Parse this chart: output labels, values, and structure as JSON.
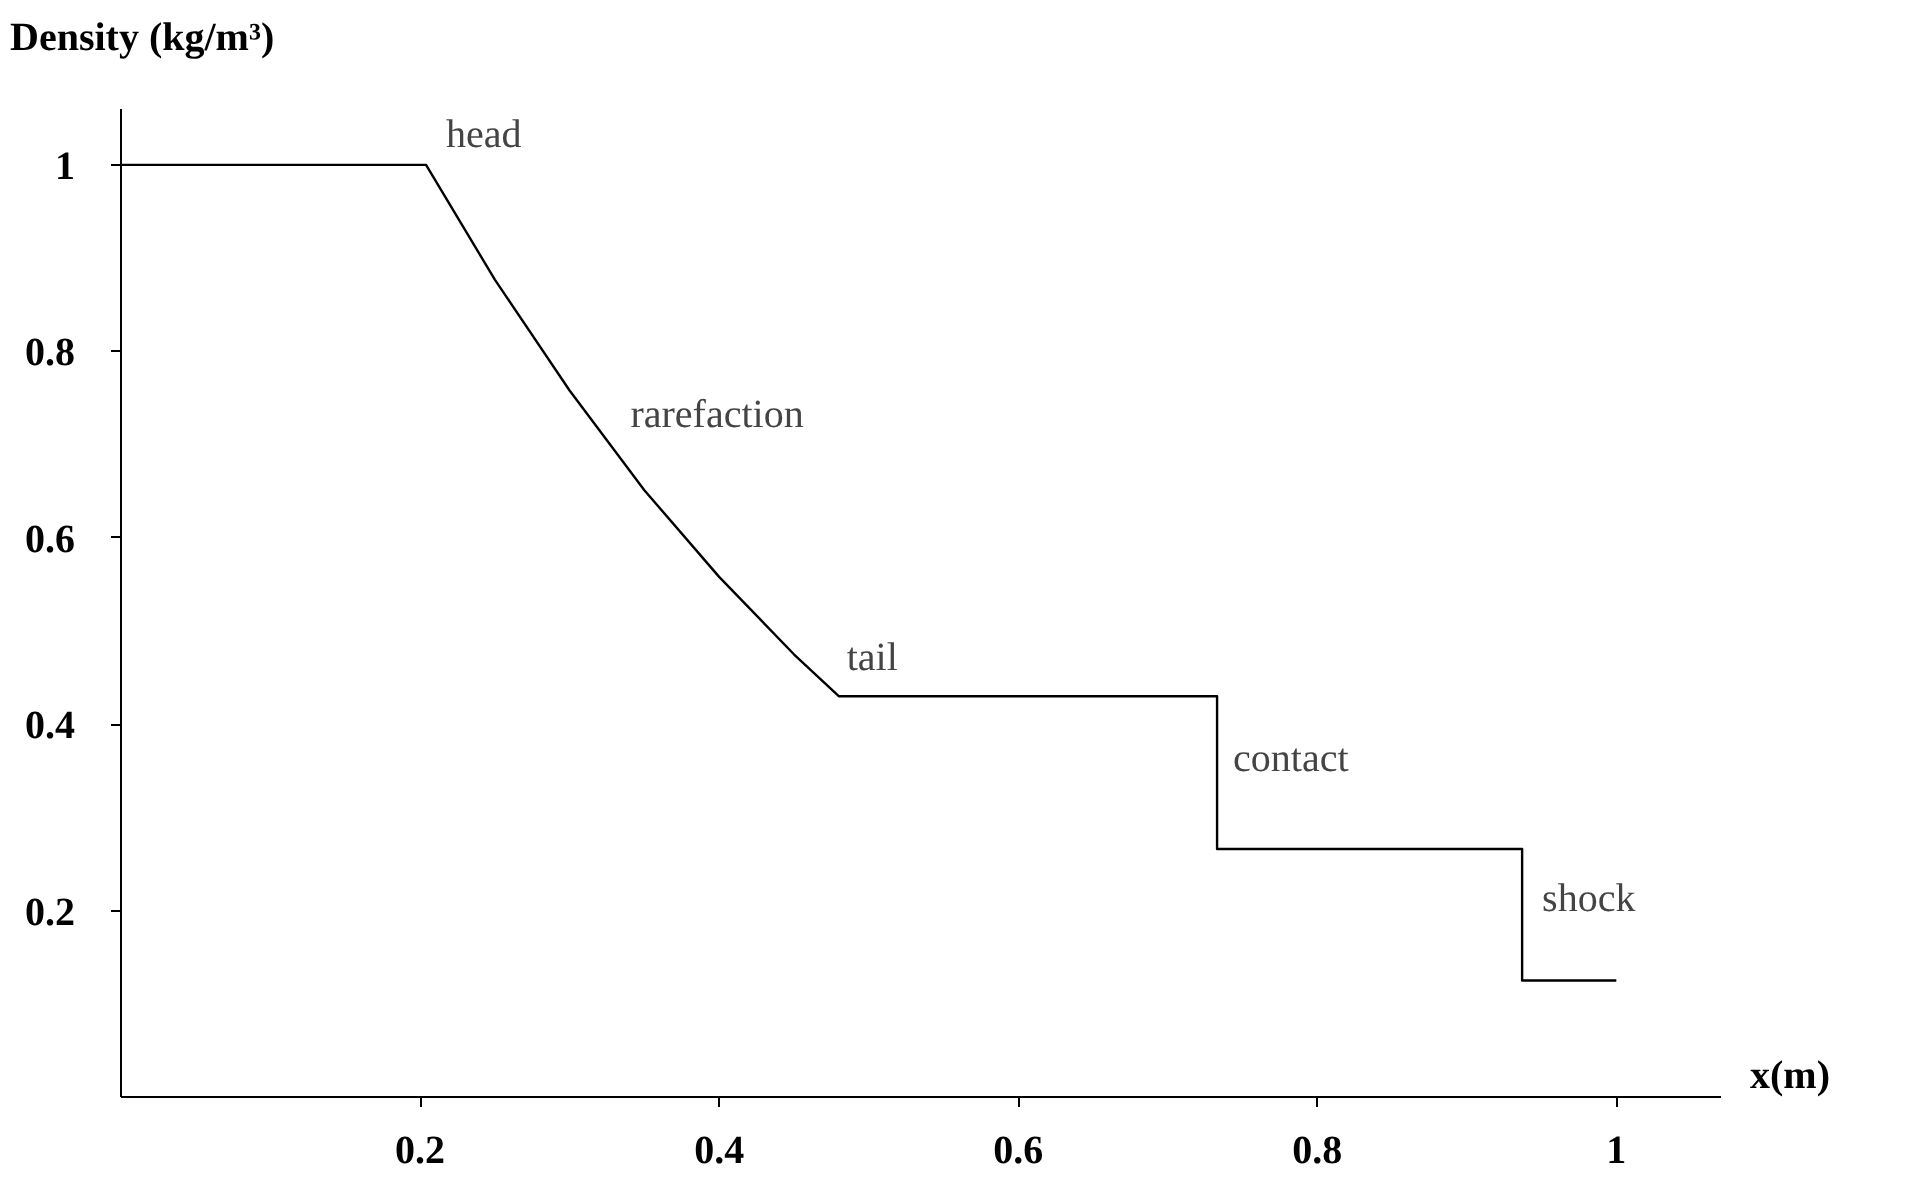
{
  "chart_data": {
    "type": "line",
    "xlabel": "x(m)",
    "ylabel": "Density (kg/m³)",
    "series": [
      {
        "color": "#000000",
        "x": [
          0,
          0.204,
          0.25,
          0.3,
          0.35,
          0.4,
          0.45,
          0.48,
          0.733,
          0.733,
          0.937,
          0.937,
          1.0
        ],
        "values": [
          1,
          1,
          0.877,
          0.758,
          0.651,
          0.558,
          0.475,
          0.43,
          0.43,
          0.266,
          0.266,
          0.125,
          0.125
        ]
      }
    ],
    "xlim": [
      0,
      1.07
    ],
    "ylim": [
      0,
      1.06
    ],
    "xticks": [
      0.2,
      0.4,
      0.6,
      0.8,
      1
    ],
    "yticks": [
      0.2,
      0.4,
      0.6,
      0.8,
      1
    ],
    "grid": false,
    "marker": "none",
    "line_style": "solid",
    "annotations": [
      {
        "text": "head",
        "x": 0.204,
        "y": 1
      },
      {
        "text": "rarefaction",
        "x": 0.33,
        "y": 0.7
      },
      {
        "text": "tail",
        "x": 0.48,
        "y": 0.43
      },
      {
        "text": "contact",
        "x": 0.733,
        "y": 0.33
      },
      {
        "text": "shock",
        "x": 0.937,
        "y": 0.18
      }
    ]
  }
}
